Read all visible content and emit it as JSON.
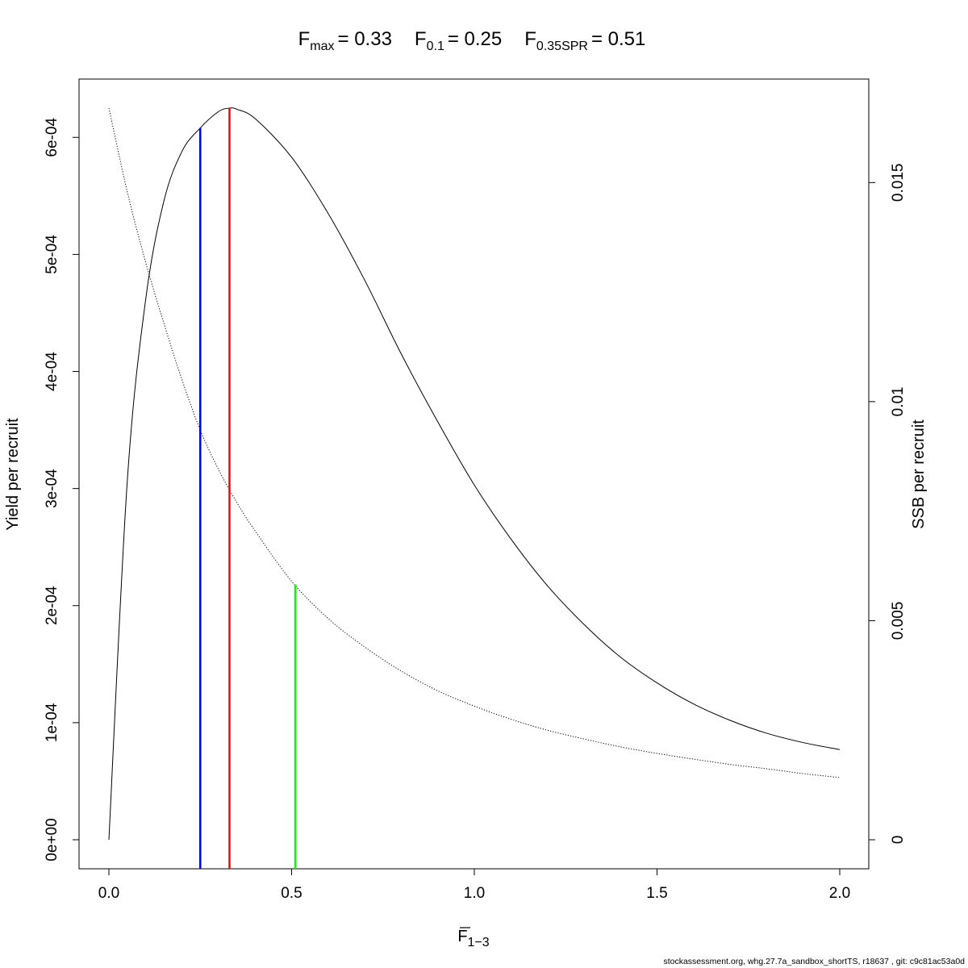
{
  "title": {
    "fmax_label": "F",
    "fmax_sub": "max",
    "fmax_value": "= 0.33",
    "f01_label": "F",
    "f01_sub": "0.1",
    "f01_value": "= 0.25",
    "fspr_label": "F",
    "fspr_sub": "0.35SPR",
    "fspr_value": "= 0.51"
  },
  "footer": "stockassessment.org, whg.27.7a_sandbox_shortTS, r18637 , git: c9c81ac53a0d",
  "chart_data": {
    "type": "line",
    "xlabel": {
      "base": "F",
      "sub": "1−3"
    },
    "ylabel_left": "Yield per recruit",
    "ylabel_right": "SSB per recruit",
    "xlim": [
      0.0,
      2.0
    ],
    "ylim_left": [
      0,
      0.000625
    ],
    "ylim_right": [
      0,
      0.0167
    ],
    "x_ticks": [
      "0.0",
      "0.5",
      "1.0",
      "1.5",
      "2.0"
    ],
    "x_tick_values": [
      0.0,
      0.5,
      1.0,
      1.5,
      2.0
    ],
    "y_left_ticks": [
      "0e+00",
      "1e-04",
      "2e-04",
      "3e-04",
      "4e-04",
      "5e-04",
      "6e-04"
    ],
    "y_left_tick_values": [
      0,
      0.0001,
      0.0002,
      0.0003,
      0.0004,
      0.0005,
      0.0006
    ],
    "y_right_ticks": [
      "0",
      "0.005",
      "0.01",
      "0.015"
    ],
    "y_right_tick_values": [
      0,
      0.005,
      0.01,
      0.015
    ],
    "series": [
      {
        "axis": "left",
        "style": "solid",
        "color": "#000000",
        "x": [
          0.0,
          0.05,
          0.1,
          0.15,
          0.2,
          0.25,
          0.3,
          0.33,
          0.35,
          0.4,
          0.5,
          0.6,
          0.7,
          0.8,
          0.9,
          1.0,
          1.1,
          1.2,
          1.3,
          1.4,
          1.5,
          1.6,
          1.7,
          1.8,
          1.9,
          2.0
        ],
        "y": [
          0.0,
          0.000305,
          0.00046,
          0.000545,
          0.000588,
          0.000608,
          0.000622,
          0.000625,
          0.000624,
          0.000616,
          0.000583,
          0.000535,
          0.000478,
          0.000415,
          0.000357,
          0.000303,
          0.000257,
          0.000217,
          0.000184,
          0.000156,
          0.000134,
          0.000116,
          0.000102,
          9.1e-05,
          8.3e-05,
          7.7e-05
        ]
      },
      {
        "axis": "right",
        "style": "dotted",
        "color": "#000000",
        "x": [
          0.0,
          0.05,
          0.1,
          0.15,
          0.2,
          0.25,
          0.3,
          0.35,
          0.4,
          0.5,
          0.6,
          0.7,
          0.8,
          0.9,
          1.0,
          1.1,
          1.2,
          1.3,
          1.4,
          1.5,
          1.6,
          1.7,
          1.8,
          1.9,
          2.0
        ],
        "y": [
          0.0167,
          0.0148,
          0.0132,
          0.0118,
          0.0105,
          0.00935,
          0.00845,
          0.0077,
          0.00705,
          0.0059,
          0.00505,
          0.0044,
          0.00385,
          0.0034,
          0.00305,
          0.00275,
          0.0025,
          0.0023,
          0.00212,
          0.00197,
          0.00184,
          0.00172,
          0.00162,
          0.00151,
          0.00142
        ]
      }
    ],
    "reference_lines": [
      {
        "name": "F0.1",
        "x": 0.25,
        "color": "#0000ff",
        "axis": "left",
        "y_top": 0.000608
      },
      {
        "name": "Fmax",
        "x": 0.33,
        "color": "#ff0000",
        "axis": "left",
        "y_top": 0.000625
      },
      {
        "name": "F0.35SPR",
        "x": 0.51,
        "color": "#00ff00",
        "axis": "right",
        "y_top": 0.00582
      }
    ]
  }
}
